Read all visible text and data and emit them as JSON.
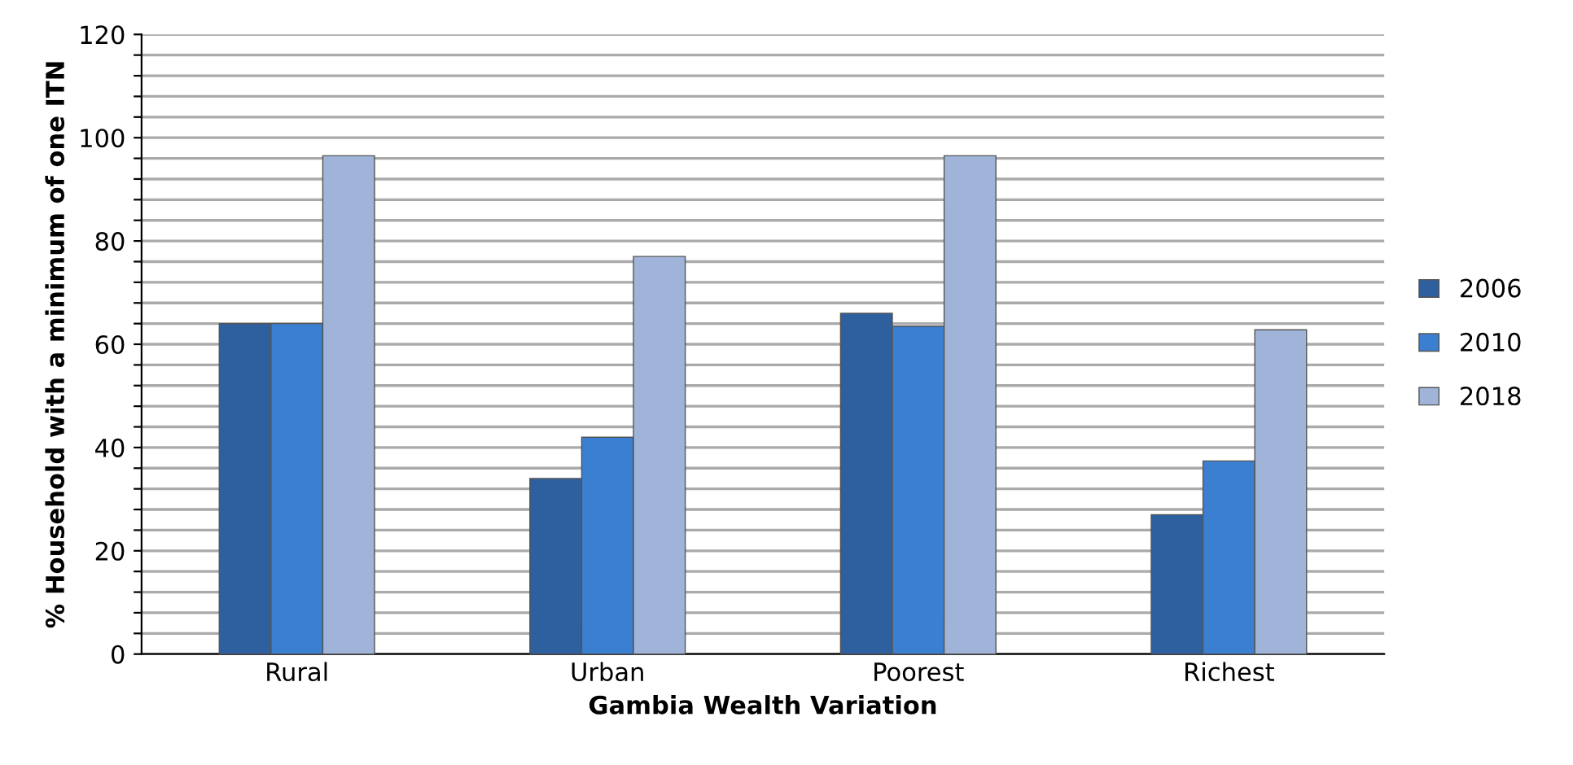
{
  "chart_data": {
    "type": "bar",
    "xlabel": "Gambia Wealth Variation",
    "ylabel": "% Household with a minimum of one ITN",
    "categories": [
      "Rural",
      "Urban",
      "Poorest",
      "Richest"
    ],
    "series": [
      {
        "name": "2006",
        "color": "#2e5f9e",
        "values": [
          64,
          34,
          66,
          27
        ]
      },
      {
        "name": "2010",
        "color": "#3b7fd0",
        "values": [
          64,
          42,
          63.5,
          37.4
        ]
      },
      {
        "name": "2018",
        "color": "#9fb4d8",
        "values": [
          96.5,
          77,
          96.5,
          62.8
        ]
      }
    ],
    "ylim": [
      0,
      120
    ],
    "yticks": [
      0,
      {
        "value": 4,
        "label": null
      },
      {
        "value": 8,
        "label": null
      },
      {
        "value": 12,
        "label": null
      },
      {
        "value": 16,
        "label": null
      },
      20,
      {
        "value": 24,
        "label": null
      },
      {
        "value": 28,
        "label": null
      },
      {
        "value": 32,
        "label": null
      },
      {
        "value": 36,
        "label": null
      },
      40,
      {
        "value": 44,
        "label": null
      },
      {
        "value": 48,
        "label": null
      },
      {
        "value": 52,
        "label": null
      },
      {
        "value": 56,
        "label": null
      },
      60,
      {
        "value": 64,
        "label": null
      },
      {
        "value": 68,
        "label": null
      },
      {
        "value": 72,
        "label": null
      },
      {
        "value": 76,
        "label": null
      },
      80,
      {
        "value": 84,
        "label": null
      },
      {
        "value": 88,
        "label": null
      },
      {
        "value": 92,
        "label": null
      },
      {
        "value": 96,
        "label": null
      },
      100,
      {
        "value": 104,
        "label": null
      },
      {
        "value": 108,
        "label": null
      },
      {
        "value": 112,
        "label": null
      },
      {
        "value": 116,
        "label": null
      },
      120
    ],
    "grid": "y",
    "legend": "right"
  }
}
